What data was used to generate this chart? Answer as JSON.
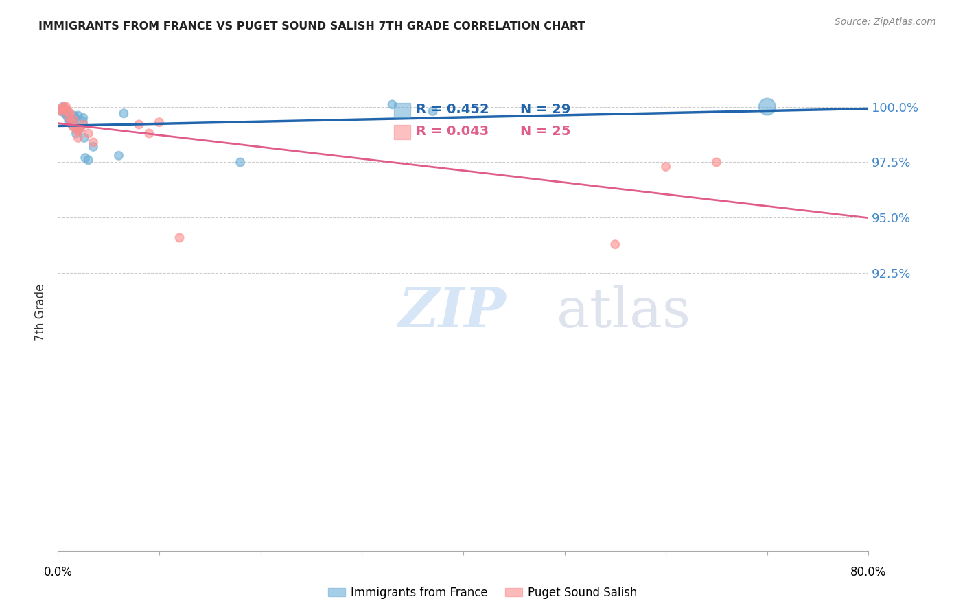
{
  "title": "IMMIGRANTS FROM FRANCE VS PUGET SOUND SALISH 7TH GRADE CORRELATION CHART",
  "source": "Source: ZipAtlas.com",
  "ylabel": "7th Grade",
  "xlim": [
    0.0,
    80.0
  ],
  "ylim": [
    80.0,
    101.5
  ],
  "yticks": [
    92.5,
    95.0,
    97.5,
    100.0
  ],
  "ytick_labels": [
    "92.5%",
    "95.0%",
    "97.5%",
    "100.0%"
  ],
  "blue_R": "R = 0.452",
  "blue_N": "N = 29",
  "pink_R": "R = 0.043",
  "pink_N": "N = 25",
  "blue_color": "#6baed6",
  "pink_color": "#fc8d8d",
  "blue_line_color": "#2166ac",
  "pink_line_color": "#e05c8a",
  "title_color": "#222222",
  "source_color": "#888888",
  "ytick_color": "#4488cc",
  "grid_color": "#cccccc",
  "legend_label_blue": "Immigrants from France",
  "legend_label_pink": "Puget Sound Salish",
  "blue_x": [
    0.3,
    0.5,
    0.5,
    0.7,
    0.9,
    0.9,
    1.0,
    1.1,
    1.2,
    1.4,
    1.5,
    1.6,
    1.7,
    1.8,
    2.0,
    2.0,
    2.1,
    2.3,
    2.5,
    2.6,
    2.7,
    3.0,
    3.5,
    6.0,
    6.5,
    18.0,
    33.0,
    37.0,
    70.0
  ],
  "blue_y": [
    99.8,
    100.0,
    99.9,
    99.7,
    99.6,
    99.8,
    99.5,
    99.3,
    99.4,
    99.2,
    99.4,
    99.6,
    99.5,
    98.8,
    99.6,
    99.1,
    99.0,
    99.3,
    99.5,
    98.6,
    97.7,
    97.6,
    98.2,
    97.8,
    99.7,
    97.5,
    100.1,
    99.8,
    100.0
  ],
  "blue_sizes": [
    30,
    30,
    30,
    30,
    30,
    30,
    30,
    30,
    30,
    30,
    30,
    30,
    30,
    30,
    30,
    30,
    30,
    60,
    30,
    30,
    30,
    30,
    30,
    30,
    30,
    30,
    30,
    30,
    120
  ],
  "pink_x": [
    0.2,
    0.4,
    0.5,
    0.6,
    0.8,
    1.0,
    1.1,
    1.2,
    1.3,
    1.5,
    1.6,
    1.8,
    2.0,
    2.0,
    2.2,
    2.5,
    3.0,
    3.5,
    8.0,
    9.0,
    10.0,
    12.0,
    55.0,
    60.0,
    65.0
  ],
  "pink_y": [
    99.9,
    99.8,
    99.9,
    100.0,
    100.0,
    99.8,
    99.5,
    99.7,
    99.3,
    99.1,
    99.4,
    99.0,
    98.9,
    98.6,
    99.0,
    99.2,
    98.8,
    98.4,
    99.2,
    98.8,
    99.3,
    94.1,
    93.8,
    97.3,
    97.5
  ],
  "pink_sizes": [
    30,
    30,
    30,
    30,
    30,
    30,
    30,
    30,
    30,
    30,
    30,
    30,
    30,
    30,
    30,
    30,
    30,
    30,
    30,
    30,
    30,
    30,
    30,
    30,
    30
  ]
}
